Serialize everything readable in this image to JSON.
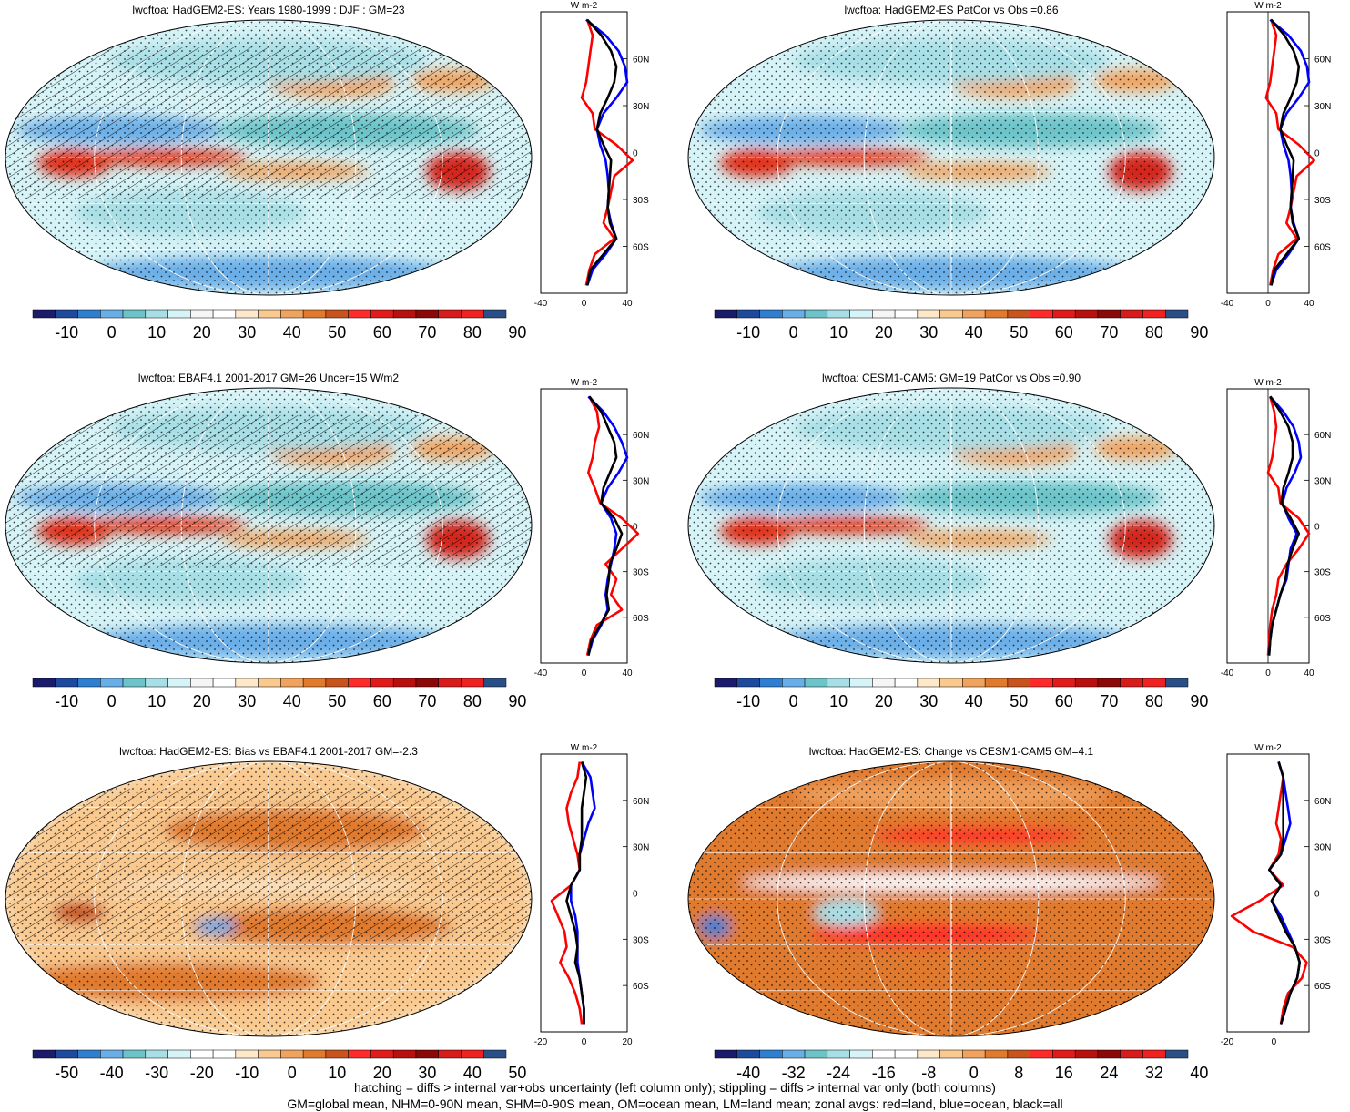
{
  "footer": {
    "line1": "hatching = diffs > internal var+obs uncertainty (left column only); stippling = diffs > internal var only (both columns)",
    "line2": "GM=global mean, NHM=0-90N mean, SHM=0-90S mean, OM=ocean mean, LM=land mean; zonal avgs: red=land, blue=ocean, black=all"
  },
  "chart_data": [
    {
      "type": "heatmap",
      "title": "lwcftoa: HadGEM2-ES: Years 1980-1999 : DJF : GM=23",
      "field": "absolute",
      "colorbar_ticks": [
        "-10",
        "0",
        "10",
        "20",
        "30",
        "40",
        "50",
        "60",
        "70",
        "80",
        "90"
      ],
      "hatching": true,
      "zonal": {
        "unit": "W m-2",
        "xticks": [
          "-40",
          "0",
          "40"
        ],
        "xlim": [
          -40,
          40
        ],
        "lat_labels": [
          "60N",
          "30N",
          "0",
          "30S",
          "60S"
        ],
        "lat": [
          85,
          75,
          65,
          55,
          45,
          35,
          25,
          15,
          5,
          -5,
          -15,
          -25,
          -35,
          -45,
          -55,
          -65,
          -75,
          -85
        ],
        "series": [
          {
            "name": "land",
            "color": "#ff0000",
            "values": [
              3,
              8,
              6,
              4,
              2,
              -2,
              8,
              10,
              30,
              45,
              28,
              25,
              22,
              18,
              28,
              10,
              5,
              2
            ]
          },
          {
            "name": "ocean",
            "color": "#0000ff",
            "values": [
              2,
              20,
              32,
              38,
              40,
              30,
              18,
              12,
              15,
              20,
              22,
              23,
              22,
              25,
              30,
              20,
              8,
              3
            ]
          },
          {
            "name": "all",
            "color": "#000000",
            "values": [
              3,
              16,
              25,
              30,
              28,
              22,
              15,
              12,
              18,
              25,
              24,
              23,
              22,
              24,
              30,
              18,
              6,
              3
            ]
          }
        ]
      }
    },
    {
      "type": "heatmap",
      "title": "lwcftoa: HadGEM2-ES PatCor vs Obs =0.86",
      "field": "absolute",
      "colorbar_ticks": [
        "-10",
        "0",
        "10",
        "20",
        "30",
        "40",
        "50",
        "60",
        "70",
        "80",
        "90"
      ],
      "hatching": false,
      "zonal": {
        "unit": "W m-2",
        "xticks": [
          "-40",
          "0",
          "40"
        ],
        "xlim": [
          -40,
          40
        ],
        "lat_labels": [
          "60N",
          "30N",
          "0",
          "30S",
          "60S"
        ],
        "lat": [
          85,
          75,
          65,
          55,
          45,
          35,
          25,
          15,
          5,
          -5,
          -15,
          -25,
          -35,
          -45,
          -55,
          -65,
          -75,
          -85
        ],
        "series": [
          {
            "name": "land",
            "color": "#ff0000",
            "values": [
              3,
              8,
              6,
              4,
              2,
              -2,
              8,
              10,
              30,
              45,
              28,
              25,
              22,
              18,
              28,
              10,
              5,
              2
            ]
          },
          {
            "name": "ocean",
            "color": "#0000ff",
            "values": [
              2,
              20,
              32,
              38,
              40,
              30,
              18,
              12,
              15,
              20,
              22,
              23,
              22,
              25,
              30,
              20,
              8,
              3
            ]
          },
          {
            "name": "all",
            "color": "#000000",
            "values": [
              3,
              16,
              25,
              30,
              28,
              22,
              15,
              12,
              18,
              25,
              24,
              23,
              22,
              24,
              30,
              18,
              6,
              3
            ]
          }
        ]
      }
    },
    {
      "type": "heatmap",
      "title": "lwcftoa: EBAF4.1 2001-2017 GM=26 Uncer=15 W/m2",
      "field": "absolute",
      "colorbar_ticks": [
        "-10",
        "0",
        "10",
        "20",
        "30",
        "40",
        "50",
        "60",
        "70",
        "80",
        "90"
      ],
      "hatching": true,
      "zonal": {
        "unit": "W m-2",
        "xticks": [
          "-40",
          "0",
          "40"
        ],
        "xlim": [
          -40,
          40
        ],
        "lat_labels": [
          "60N",
          "30N",
          "0",
          "30S",
          "60S"
        ],
        "lat": [
          85,
          75,
          65,
          55,
          45,
          35,
          25,
          15,
          5,
          -5,
          -15,
          -25,
          -35,
          -45,
          -55,
          -65,
          -75,
          -85
        ],
        "series": [
          {
            "name": "land",
            "color": "#ff0000",
            "values": [
              5,
              12,
              14,
              10,
              8,
              4,
              10,
              15,
              35,
              50,
              35,
              20,
              30,
              25,
              35,
              12,
              6,
              3
            ]
          },
          {
            "name": "ocean",
            "color": "#0000ff",
            "values": [
              4,
              18,
              28,
              35,
              40,
              32,
              22,
              16,
              25,
              30,
              28,
              25,
              22,
              20,
              22,
              16,
              8,
              4
            ]
          },
          {
            "name": "all",
            "color": "#000000",
            "values": [
              5,
              16,
              22,
              28,
              30,
              24,
              18,
              16,
              28,
              35,
              30,
              24,
              23,
              21,
              23,
              15,
              7,
              4
            ]
          }
        ]
      }
    },
    {
      "type": "heatmap",
      "title": "lwcftoa: CESM1-CAM5: GM=19 PatCor vs Obs =0.90",
      "field": "absolute",
      "colorbar_ticks": [
        "-10",
        "0",
        "10",
        "20",
        "30",
        "40",
        "50",
        "60",
        "70",
        "80",
        "90"
      ],
      "hatching": false,
      "zonal": {
        "unit": "W m-2",
        "xticks": [
          "-40",
          "0",
          "40"
        ],
        "xlim": [
          -40,
          40
        ],
        "lat_labels": [
          "60N",
          "30N",
          "0",
          "30S",
          "60S"
        ],
        "lat": [
          85,
          75,
          65,
          55,
          45,
          35,
          25,
          15,
          5,
          -5,
          -15,
          -25,
          -35,
          -45,
          -55,
          -65,
          -75,
          -85
        ],
        "series": [
          {
            "name": "land",
            "color": "#ff0000",
            "values": [
              2,
              6,
              8,
              6,
              4,
              0,
              10,
              12,
              30,
              40,
              30,
              18,
              10,
              8,
              4,
              2,
              1,
              0
            ]
          },
          {
            "name": "ocean",
            "color": "#0000ff",
            "values": [
              2,
              15,
              25,
              30,
              32,
              26,
              18,
              14,
              20,
              28,
              22,
              20,
              18,
              12,
              8,
              4,
              2,
              1
            ]
          },
          {
            "name": "all",
            "color": "#000000",
            "values": [
              2,
              12,
              20,
              24,
              24,
              20,
              15,
              13,
              22,
              30,
              24,
              19,
              17,
              12,
              8,
              4,
              2,
              1
            ]
          }
        ]
      }
    },
    {
      "type": "heatmap",
      "title": "lwcftoa: HadGEM2-ES: Bias vs EBAF4.1 2001-2017 GM=-2.3",
      "field": "difference",
      "colorbar_ticks": [
        "-50",
        "-40",
        "-30",
        "-20",
        "-10",
        "0",
        "10",
        "20",
        "30",
        "40",
        "50"
      ],
      "hatching": true,
      "zonal": {
        "unit": "W m-2",
        "xticks": [
          "-20",
          "0",
          "20"
        ],
        "xlim": [
          -20,
          20
        ],
        "lat_labels": [
          "60N",
          "30N",
          "0",
          "30S",
          "60S"
        ],
        "lat": [
          85,
          75,
          65,
          55,
          45,
          35,
          25,
          15,
          5,
          -5,
          -15,
          -25,
          -35,
          -45,
          -55,
          -65,
          -75,
          -85
        ],
        "series": [
          {
            "name": "land",
            "color": "#ff0000",
            "values": [
              -2,
              -3,
              -6,
              -8,
              -7,
              -5,
              -3,
              -2,
              -6,
              -15,
              -12,
              -9,
              -8,
              -11,
              -7,
              -4,
              -2,
              -1
            ]
          },
          {
            "name": "ocean",
            "color": "#0000ff",
            "values": [
              -1,
              3,
              4,
              5,
              2,
              0,
              -2,
              -2,
              -6,
              -6,
              -4,
              -3,
              -3,
              -3,
              -2,
              -1,
              0,
              0
            ]
          },
          {
            "name": "all",
            "color": "#000000",
            "values": [
              -1,
              1,
              0,
              -1,
              -1,
              -1,
              -2,
              -2,
              -6,
              -8,
              -6,
              -4,
              -3,
              -4,
              -2,
              -1,
              0,
              0
            ]
          }
        ]
      }
    },
    {
      "type": "heatmap",
      "title": "lwcftoa: HadGEM2-ES: Change vs CESM1-CAM5 GM=4.1",
      "field": "difference",
      "colorbar_ticks": [
        "-40",
        "-32",
        "-24",
        "-16",
        "-8",
        "0",
        "8",
        "16",
        "24",
        "32",
        "40"
      ],
      "hatching": false,
      "zonal": {
        "unit": "W m-2",
        "xticks": [
          "-20",
          "0"
        ],
        "xlim": [
          -20,
          15
        ],
        "lat_labels": [
          "60N",
          "30N",
          "0",
          "30S",
          "60S"
        ],
        "lat": [
          85,
          75,
          65,
          55,
          45,
          35,
          25,
          15,
          5,
          -5,
          -15,
          -25,
          -35,
          -45,
          -55,
          -65,
          -75,
          -85
        ],
        "series": [
          {
            "name": "land",
            "color": "#ff0000",
            "values": [
              2,
              4,
              3,
              2,
              1,
              3,
              2,
              -2,
              4,
              -6,
              -18,
              -9,
              8,
              14,
              12,
              6,
              4,
              3
            ]
          },
          {
            "name": "ocean",
            "color": "#0000ff",
            "values": [
              2,
              4,
              5,
              6,
              7,
              5,
              3,
              -2,
              3,
              -1,
              3,
              6,
              9,
              11,
              10,
              7,
              5,
              3
            ]
          },
          {
            "name": "all",
            "color": "#000000",
            "values": [
              2,
              4,
              4,
              4,
              4,
              4,
              3,
              -2,
              3,
              -1,
              2,
              5,
              9,
              11,
              10,
              7,
              5,
              3
            ]
          }
        ]
      }
    }
  ]
}
